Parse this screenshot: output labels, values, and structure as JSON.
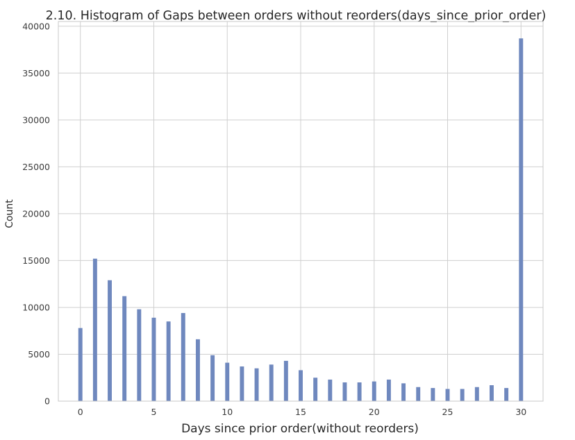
{
  "chart_data": {
    "type": "bar",
    "title": "2.10. Histogram of Gaps between orders without reorders(days_since_prior_order)",
    "xlabel": "Days since prior order(without reorders)",
    "ylabel": "Count",
    "xlim": [
      -1.5,
      31.5
    ],
    "ylim": [
      0,
      40500
    ],
    "grid": true,
    "x_ticks": [
      0,
      5,
      10,
      15,
      20,
      25,
      30
    ],
    "y_ticks": [
      0,
      5000,
      10000,
      15000,
      20000,
      25000,
      30000,
      35000,
      40000
    ],
    "bar_width_days": 0.28,
    "bar_color": "#6f88be",
    "x": [
      0,
      1,
      2,
      3,
      4,
      5,
      6,
      7,
      8,
      9,
      10,
      11,
      12,
      13,
      14,
      15,
      16,
      17,
      18,
      19,
      20,
      21,
      22,
      23,
      24,
      25,
      26,
      27,
      28,
      29,
      30
    ],
    "values": [
      7800,
      15200,
      12900,
      11200,
      9800,
      8900,
      8500,
      9400,
      6600,
      4900,
      4100,
      3700,
      3500,
      3900,
      4300,
      3300,
      2500,
      2300,
      2000,
      2000,
      2100,
      2300,
      1900,
      1500,
      1400,
      1300,
      1300,
      1500,
      1700,
      1400,
      38700
    ]
  }
}
